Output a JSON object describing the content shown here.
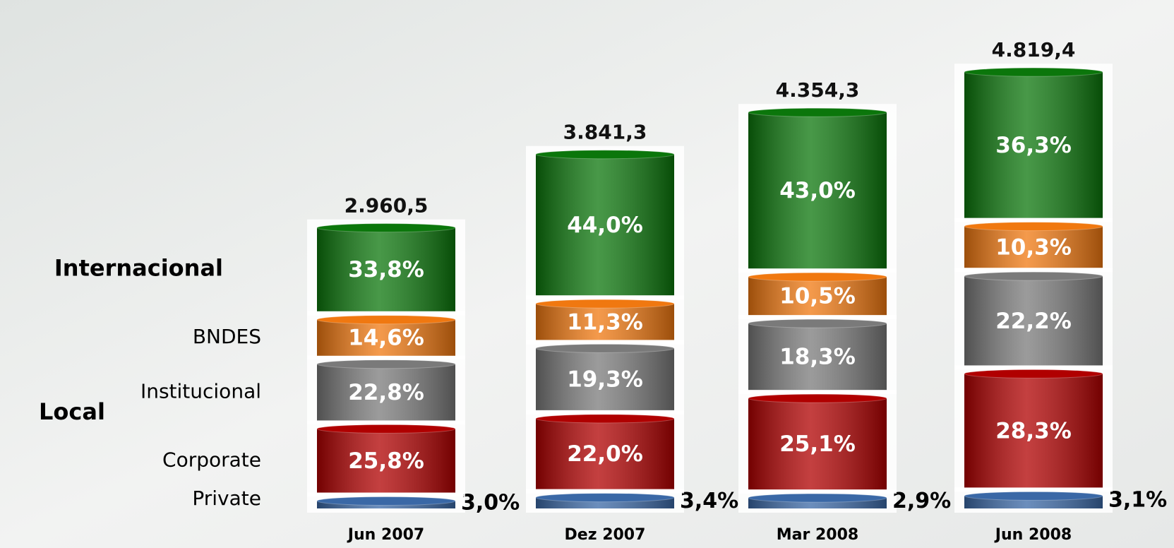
{
  "chart_data": {
    "type": "bar",
    "stacked": true,
    "categories": [
      "Jun 2007",
      "Dez 2007",
      "Mar 2008",
      "Jun 2008"
    ],
    "totals": {
      "values": [
        2960.5,
        3841.3,
        4354.3,
        4819.4
      ],
      "value_labels": [
        "2.960,5",
        "3.841,3",
        "4.354,3",
        "4.819,4"
      ]
    },
    "group_label": "Local",
    "series": [
      {
        "name": "Private",
        "color": "#3a68a6",
        "values": [
          3.0,
          3.4,
          2.9,
          3.1
        ],
        "value_labels": [
          "3,0%",
          "3,4%",
          "2,9%",
          "3,1%"
        ]
      },
      {
        "name": "Corporate",
        "color": "#b00000",
        "values": [
          25.8,
          22.0,
          25.1,
          28.3
        ],
        "value_labels": [
          "25,8%",
          "22,0%",
          "25,1%",
          "28,3%"
        ]
      },
      {
        "name": "Institucional",
        "color": "#7a7a7a",
        "values": [
          22.8,
          19.3,
          18.3,
          22.2
        ],
        "value_labels": [
          "22,8%",
          "19,3%",
          "18,3%",
          "22,2%"
        ]
      },
      {
        "name": "BNDES",
        "color": "#f07810",
        "values": [
          14.6,
          11.3,
          10.5,
          10.3
        ],
        "value_labels": [
          "14,6%",
          "11,3%",
          "10,5%",
          "10,3%"
        ]
      },
      {
        "name": "Internacional",
        "color": "#0b760b",
        "values": [
          33.8,
          44.0,
          43.0,
          36.3
        ],
        "value_labels": [
          "33,8%",
          "44,0%",
          "43,0%",
          "36,3%"
        ]
      }
    ]
  }
}
